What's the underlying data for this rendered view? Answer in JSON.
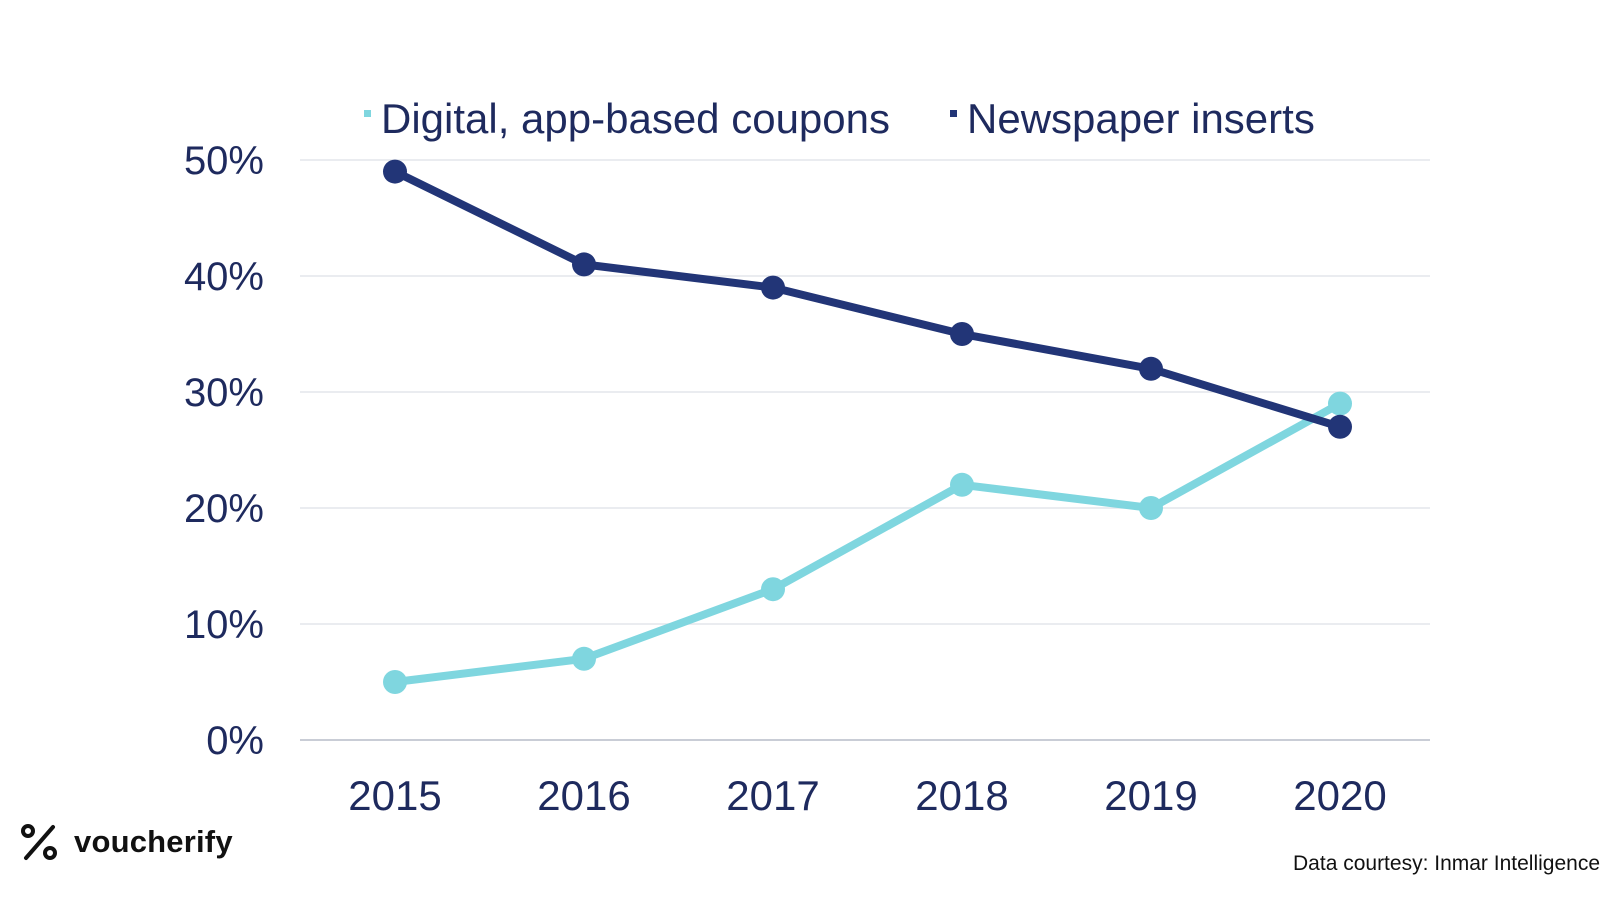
{
  "chart_data": {
    "type": "line",
    "x": [
      "2015",
      "2016",
      "2017",
      "2018",
      "2019",
      "2020"
    ],
    "ylim": [
      0,
      50
    ],
    "yticks": [
      0,
      10,
      20,
      30,
      40,
      50
    ],
    "ytick_labels": [
      "0%",
      "10%",
      "20%",
      "30%",
      "40%",
      "50%"
    ],
    "grid": true,
    "legend_position": "top",
    "series": [
      {
        "name": "Digital, app-based coupons",
        "color": "#7fd6df",
        "values": [
          5,
          7,
          13,
          22,
          20,
          29
        ]
      },
      {
        "name": "Newspaper inserts",
        "color": "#223577",
        "values": [
          49,
          41,
          39,
          35,
          32,
          27
        ]
      }
    ]
  },
  "branding": {
    "logo_text": "voucherify",
    "logo_icon": "percent-icon"
  },
  "source": "Data courtesy: Inmar Intelligence"
}
